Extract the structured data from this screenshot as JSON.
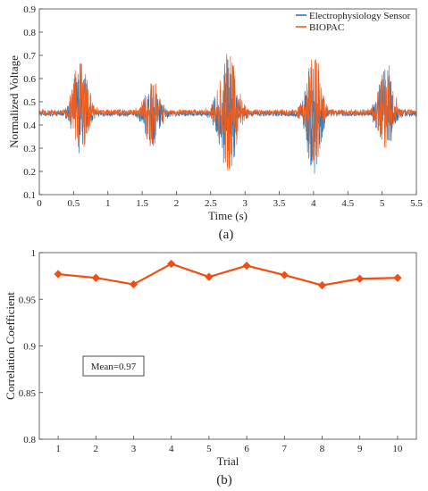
{
  "colors": {
    "electrophysiology": "#2e75b6",
    "biopac": "#f25d1b",
    "trial_line": "#f04e12",
    "axis": "#444444"
  },
  "chart_data": [
    {
      "type": "line",
      "panel_label": "(a)",
      "xlabel": "Time (s)",
      "ylabel": "Normalized Voltage",
      "xlim": [
        0,
        5.5
      ],
      "ylim": [
        0.1,
        0.9
      ],
      "xticks": [
        0,
        0.5,
        1,
        1.5,
        2,
        2.5,
        3,
        3.5,
        4,
        4.5,
        5,
        5.5
      ],
      "xtick_labels": [
        "0",
        "0.5",
        "1",
        "1.5",
        "2",
        "2.5",
        "3",
        "3.5",
        "4",
        "4.5",
        "5",
        "5.5"
      ],
      "yticks": [
        0.1,
        0.2,
        0.3,
        0.4,
        0.5,
        0.6,
        0.7,
        0.8,
        0.9
      ],
      "ytick_labels": [
        "0.1",
        "0.2",
        "0.3",
        "0.4",
        "0.5",
        "0.6",
        "0.7",
        "0.8",
        "0.9"
      ],
      "legend": "top-right",
      "baseline": 0.455,
      "bursts": [
        {
          "center": 0.6,
          "half_width": 0.2,
          "max": 0.72,
          "min": 0.28
        },
        {
          "center": 1.65,
          "half_width": 0.22,
          "max": 0.6,
          "min": 0.31
        },
        {
          "center": 2.75,
          "half_width": 0.25,
          "max": 0.72,
          "min": 0.18
        },
        {
          "center": 4.0,
          "half_width": 0.2,
          "max": 0.74,
          "min": 0.16
        },
        {
          "center": 5.05,
          "half_width": 0.2,
          "max": 0.69,
          "min": 0.27
        }
      ],
      "series": [
        {
          "name": "Electrophysiology Sensor",
          "color": "#2e75b6"
        },
        {
          "name": "BIOPAC",
          "color": "#f25d1b"
        }
      ]
    },
    {
      "type": "line",
      "panel_label": "(b)",
      "xlabel": "Trial",
      "ylabel": "Correlation Coefficient",
      "xlim": [
        0.5,
        10.5
      ],
      "ylim": [
        0.8,
        1.0
      ],
      "xticks": [
        1,
        2,
        3,
        4,
        5,
        6,
        7,
        8,
        9,
        10
      ],
      "xtick_labels": [
        "1",
        "2",
        "3",
        "4",
        "5",
        "6",
        "7",
        "8",
        "9",
        "10"
      ],
      "yticks": [
        0.8,
        0.85,
        0.9,
        0.95,
        1.0
      ],
      "ytick_labels": [
        "0.8",
        "0.85",
        "0.9",
        "0.95",
        "1"
      ],
      "x": [
        1,
        2,
        3,
        4,
        5,
        6,
        7,
        8,
        9,
        10
      ],
      "values": [
        0.977,
        0.973,
        0.966,
        0.988,
        0.974,
        0.986,
        0.976,
        0.965,
        0.972,
        0.973
      ],
      "marker": "diamond",
      "annotation": "Mean=0.97"
    }
  ]
}
